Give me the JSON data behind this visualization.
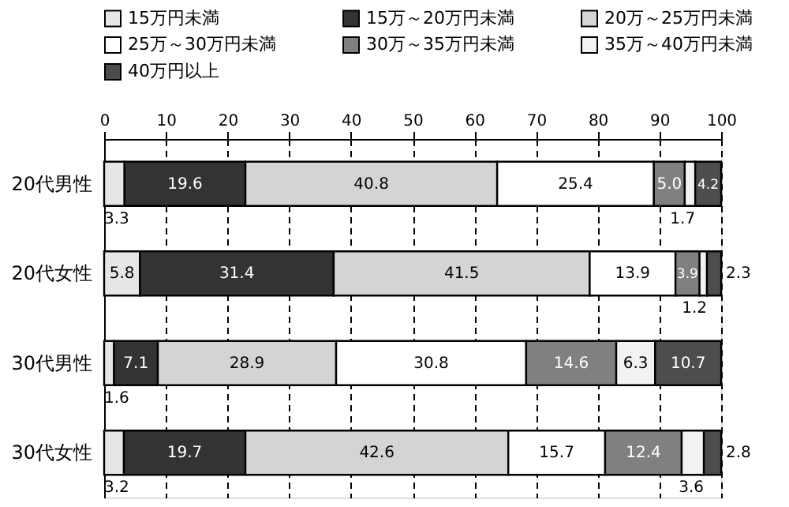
{
  "chart_data": {
    "type": "bar",
    "orientation": "horizontal",
    "stacked": true,
    "data_labels": true,
    "legend": "top",
    "grid": "x",
    "categories": [
      "20代男性",
      "20代女性",
      "30代男性",
      "30代女性"
    ],
    "xlim": [
      0,
      100
    ],
    "xticks": [
      0,
      10,
      20,
      30,
      40,
      50,
      60,
      70,
      80,
      90,
      100
    ],
    "series": [
      {
        "name": "15万円未満",
        "color": "#e6e6e6",
        "values": [
          3.3,
          5.8,
          1.6,
          3.2
        ]
      },
      {
        "name": "15万～20万円未満",
        "color": "#333333",
        "values": [
          19.6,
          31.4,
          7.1,
          19.7
        ]
      },
      {
        "name": "20万～25万円未満",
        "color": "#d4d4d4",
        "values": [
          40.8,
          41.5,
          28.9,
          42.6
        ]
      },
      {
        "name": "25万～30万円未満",
        "color": "#ffffff",
        "values": [
          25.4,
          13.9,
          30.8,
          15.7
        ]
      },
      {
        "name": "30万～35万円未満",
        "color": "#808080",
        "values": [
          5.0,
          3.9,
          14.6,
          12.4
        ],
        "value_labels": [
          "5.0",
          "3.9",
          "14.6",
          "12.4"
        ]
      },
      {
        "name": "35万～40万円未満",
        "color": "#f2f2f2",
        "values": [
          1.7,
          1.2,
          6.3,
          3.6
        ]
      },
      {
        "name": "40万円以上",
        "color": "#4d4d4d",
        "values": [
          4.2,
          2.3,
          10.7,
          2.8
        ]
      }
    ]
  }
}
